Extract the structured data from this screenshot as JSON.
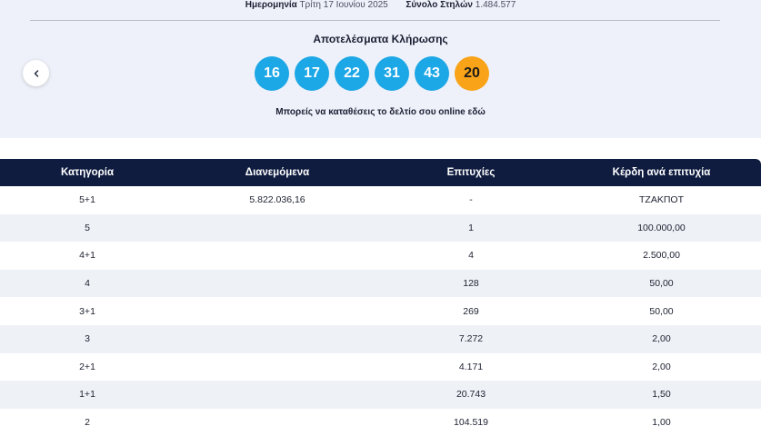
{
  "header": {
    "date_label": "Ημερομηνία",
    "date_value": "Τρίτη 17 Ιουνίου 2025",
    "columns_label": "Σύνολο Στηλών",
    "columns_value": "1.484.577",
    "results_title": "Αποτελέσματα Κλήρωσης",
    "online_text": "Μπορείς να καταθέσεις το δελτίο σου online εδώ"
  },
  "draw": {
    "numbers": [
      "16",
      "17",
      "22",
      "31",
      "43"
    ],
    "bonus": "20",
    "colors": {
      "main": "#1ca7e6",
      "bonus": "#f8a318"
    }
  },
  "table": {
    "headers": [
      "Κατηγορία",
      "Διανεμόμενα",
      "Επιτυχίες",
      "Κέρδη ανά επιτυχία"
    ],
    "rows": [
      [
        "5+1",
        "5.822.036,16",
        "-",
        "ΤΖΑΚΠΟΤ"
      ],
      [
        "5",
        "",
        "1",
        "100.000,00"
      ],
      [
        "4+1",
        "",
        "4",
        "2.500,00"
      ],
      [
        "4",
        "",
        "128",
        "50,00"
      ],
      [
        "3+1",
        "",
        "269",
        "50,00"
      ],
      [
        "3",
        "",
        "7.272",
        "2,00"
      ],
      [
        "2+1",
        "",
        "4.171",
        "2,00"
      ],
      [
        "1+1",
        "",
        "20.743",
        "1,50"
      ],
      [
        "2",
        "",
        "104.519",
        "1,00"
      ]
    ]
  },
  "icons": {
    "back": "chevron-left-icon"
  }
}
